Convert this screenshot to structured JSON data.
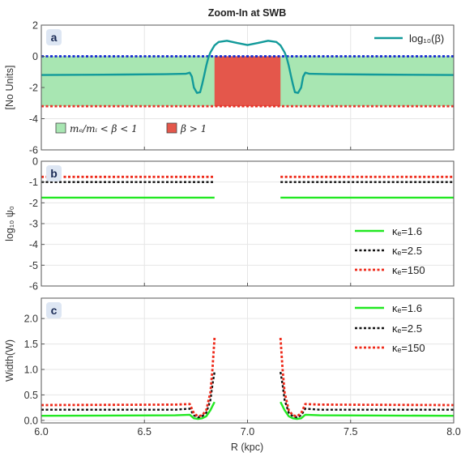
{
  "title": "Zoom-In at SWB",
  "x_axis": {
    "label": "R (kpc)",
    "range": [
      6.0,
      8.0
    ],
    "ticks": [
      6.0,
      6.5,
      7.0,
      7.5,
      8.0
    ],
    "tick_labels": [
      "6.0",
      "6.5",
      "7.0",
      "7.5",
      "8.0"
    ]
  },
  "colors": {
    "beta_line": "#129a9a",
    "green_band": "#a8e6b2",
    "red_region": "#e4574b",
    "blue_dotted": "#1428d2",
    "red_dotted": "#e8342a",
    "kappa_16": "#22e822",
    "kappa_25": "#111111",
    "kappa_150": "#ee2a1a",
    "panel_label_bg": "#dde6f3"
  },
  "chart_data": [
    {
      "panel": "a",
      "type": "line",
      "ylabel": "[No Units]",
      "ylim": [
        -6,
        2
      ],
      "yticks": [
        2,
        0,
        -2,
        -4,
        -6
      ],
      "ytick_labels": [
        "2",
        "0",
        "-2",
        "-4",
        "-6"
      ],
      "grid": true,
      "legend_position": "top-right",
      "series": [
        {
          "name": "log₁₀(β)",
          "x": [
            6.0,
            6.4,
            6.6,
            6.7,
            6.72,
            6.73,
            6.74,
            6.755,
            6.77,
            6.78,
            6.79,
            6.8,
            6.81,
            6.82,
            6.84,
            6.86,
            6.9,
            6.95,
            7.0,
            7.05,
            7.1,
            7.14,
            7.16,
            7.18,
            7.19,
            7.2,
            7.21,
            7.22,
            7.23,
            7.245,
            7.26,
            7.27,
            7.28,
            7.3,
            7.4,
            7.6,
            8.0
          ],
          "y": [
            -1.2,
            -1.17,
            -1.15,
            -1.12,
            -1.05,
            -1.3,
            -2.0,
            -2.35,
            -2.3,
            -1.8,
            -1.2,
            -0.6,
            -0.1,
            0.25,
            0.7,
            0.92,
            1.0,
            0.85,
            0.72,
            0.85,
            1.0,
            0.92,
            0.7,
            0.25,
            -0.1,
            -0.6,
            -1.2,
            -1.8,
            -2.3,
            -2.35,
            -2.0,
            -1.3,
            -1.05,
            -1.12,
            -1.15,
            -1.17,
            -1.2
          ]
        }
      ],
      "shaded_regions": [
        {
          "legend_label": "mₑ/mᵢ < β < 1",
          "x": [
            6.0,
            8.0
          ],
          "y": [
            -3.2,
            0
          ]
        },
        {
          "legend_label": "β > 1",
          "x": [
            6.84,
            7.16
          ],
          "y": [
            -3.2,
            0
          ]
        }
      ],
      "reference_lines": [
        {
          "y": 0
        },
        {
          "y": -3.2
        }
      ]
    },
    {
      "panel": "b",
      "type": "line",
      "ylabel": "log₁₀ ψ₀",
      "ylim": [
        -6,
        0
      ],
      "yticks": [
        0,
        -1,
        -2,
        -3,
        -4,
        -5,
        -6
      ],
      "ytick_labels": [
        "0",
        "-1",
        "-2",
        "-3",
        "-4",
        "-5",
        "-6"
      ],
      "grid": true,
      "legend_position": "bottom-right",
      "series": [
        {
          "name": "κₑ=1.6",
          "segments": [
            {
              "x": [
                6.0,
                6.84
              ],
              "y": [
                -1.75,
                -1.75
              ]
            },
            {
              "x": [
                7.16,
                8.0
              ],
              "y": [
                -1.75,
                -1.75
              ]
            }
          ]
        },
        {
          "name": "κₑ=2.5",
          "segments": [
            {
              "x": [
                6.0,
                6.84
              ],
              "y": [
                -1.0,
                -1.0
              ]
            },
            {
              "x": [
                7.16,
                8.0
              ],
              "y": [
                -1.0,
                -1.0
              ]
            }
          ]
        },
        {
          "name": "κₑ=150",
          "segments": [
            {
              "x": [
                6.0,
                6.84
              ],
              "y": [
                -0.75,
                -0.75
              ]
            },
            {
              "x": [
                7.16,
                8.0
              ],
              "y": [
                -0.75,
                -0.75
              ]
            }
          ]
        }
      ]
    },
    {
      "panel": "c",
      "type": "line",
      "ylabel": "Width(W)",
      "ylim": [
        -0.05,
        2.4
      ],
      "yticks": [
        0.0,
        0.5,
        1.0,
        1.5,
        2.0
      ],
      "ytick_labels": [
        "0.0",
        "0.5",
        "1.0",
        "1.5",
        "2.0"
      ],
      "grid": true,
      "legend_position": "top-right",
      "series": [
        {
          "name": "κₑ=1.6",
          "segments": [
            {
              "x": [
                6.0,
                6.65,
                6.72,
                6.74,
                6.76,
                6.78,
                6.8,
                6.82,
                6.835,
                6.84
              ],
              "y": [
                0.09,
                0.1,
                0.11,
                0.04,
                0.03,
                0.04,
                0.08,
                0.2,
                0.32,
                0.36
              ]
            },
            {
              "x": [
                7.16,
                7.165,
                7.18,
                7.2,
                7.22,
                7.24,
                7.26,
                7.28,
                7.35,
                8.0
              ],
              "y": [
                0.36,
                0.32,
                0.2,
                0.08,
                0.04,
                0.03,
                0.04,
                0.11,
                0.1,
                0.09
              ]
            }
          ]
        },
        {
          "name": "κₑ=2.5",
          "segments": [
            {
              "x": [
                6.0,
                6.65,
                6.72,
                6.74,
                6.76,
                6.78,
                6.8,
                6.82,
                6.83,
                6.84
              ],
              "y": [
                0.21,
                0.21,
                0.23,
                0.1,
                0.06,
                0.08,
                0.15,
                0.4,
                0.7,
                0.95
              ]
            },
            {
              "x": [
                7.16,
                7.17,
                7.18,
                7.2,
                7.22,
                7.24,
                7.26,
                7.28,
                7.35,
                8.0
              ],
              "y": [
                0.95,
                0.7,
                0.4,
                0.15,
                0.08,
                0.06,
                0.1,
                0.23,
                0.21,
                0.21
              ]
            }
          ]
        },
        {
          "name": "κₑ=150",
          "segments": [
            {
              "x": [
                6.0,
                6.65,
                6.72,
                6.74,
                6.76,
                6.78,
                6.8,
                6.82,
                6.83,
                6.84
              ],
              "y": [
                0.3,
                0.31,
                0.32,
                0.14,
                0.08,
                0.1,
                0.2,
                0.55,
                1.0,
                1.62
              ]
            },
            {
              "x": [
                7.16,
                7.17,
                7.18,
                7.2,
                7.22,
                7.24,
                7.26,
                7.28,
                7.35,
                8.0
              ],
              "y": [
                1.62,
                1.0,
                0.55,
                0.2,
                0.1,
                0.08,
                0.14,
                0.32,
                0.31,
                0.3
              ]
            }
          ]
        }
      ]
    }
  ]
}
